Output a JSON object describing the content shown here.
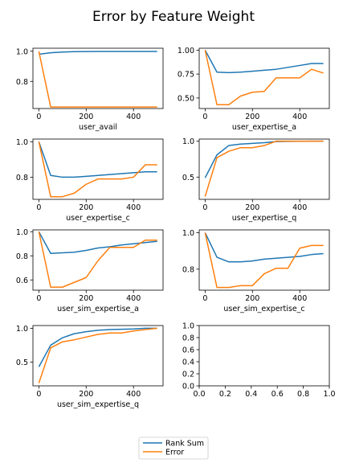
{
  "title": "Error by Feature Weight",
  "colors": {
    "rank_sum": "#1f77b4",
    "error": "#ff7f0e",
    "axis": "#000000",
    "legend_border": "#cccccc"
  },
  "legend": {
    "placement": "bottom-center",
    "entries": [
      "Rank Sum",
      "Error"
    ]
  },
  "chart_data": [
    {
      "type": "line",
      "xlabel": "user_avail",
      "xlim": [
        -25,
        525
      ],
      "ylim": [
        0.62,
        1.02
      ],
      "xticks": [
        0,
        200,
        400
      ],
      "xtick_labels": [
        "0",
        "200",
        "400"
      ],
      "yticks": [
        0.8,
        1.0
      ],
      "ytick_labels": [
        "0.8",
        "1.0"
      ],
      "x": [
        0,
        50,
        100,
        150,
        200,
        250,
        300,
        350,
        400,
        450,
        500
      ],
      "series": [
        {
          "name": "Rank Sum",
          "values": [
            0.98,
            0.99,
            0.995,
            0.997,
            0.998,
            0.999,
            0.999,
            0.999,
            0.999,
            0.999,
            0.999
          ]
        },
        {
          "name": "Error",
          "values": [
            1.0,
            0.63,
            0.63,
            0.63,
            0.63,
            0.63,
            0.63,
            0.63,
            0.63,
            0.63,
            0.63
          ]
        }
      ]
    },
    {
      "type": "line",
      "xlabel": "user_expertise_a",
      "xlim": [
        -25,
        525
      ],
      "ylim": [
        0.39,
        1.02
      ],
      "xticks": [
        0,
        200,
        400
      ],
      "xtick_labels": [
        "0",
        "200",
        "400"
      ],
      "yticks": [
        0.5,
        0.75,
        1.0
      ],
      "ytick_labels": [
        "0.50",
        "0.75",
        "1.00"
      ],
      "x": [
        0,
        50,
        100,
        150,
        200,
        250,
        300,
        350,
        400,
        450,
        500
      ],
      "series": [
        {
          "name": "Rank Sum",
          "values": [
            1.0,
            0.77,
            0.765,
            0.77,
            0.78,
            0.79,
            0.8,
            0.82,
            0.84,
            0.86,
            0.86
          ]
        },
        {
          "name": "Error",
          "values": [
            1.0,
            0.43,
            0.43,
            0.52,
            0.56,
            0.57,
            0.71,
            0.71,
            0.71,
            0.8,
            0.76
          ]
        }
      ]
    },
    {
      "type": "line",
      "xlabel": "user_expertise_c",
      "xlim": [
        -25,
        525
      ],
      "ylim": [
        0.675,
        1.015
      ],
      "xticks": [
        0,
        200,
        400
      ],
      "xtick_labels": [
        "0",
        "200",
        "400"
      ],
      "yticks": [
        0.8,
        1.0
      ],
      "ytick_labels": [
        "0.8",
        "1.0"
      ],
      "x": [
        0,
        50,
        100,
        150,
        200,
        250,
        300,
        350,
        400,
        450,
        500
      ],
      "series": [
        {
          "name": "Rank Sum",
          "values": [
            1.0,
            0.81,
            0.8,
            0.8,
            0.805,
            0.81,
            0.815,
            0.82,
            0.825,
            0.83,
            0.83
          ]
        },
        {
          "name": "Error",
          "values": [
            1.0,
            0.69,
            0.69,
            0.71,
            0.76,
            0.79,
            0.79,
            0.79,
            0.8,
            0.87,
            0.87
          ]
        }
      ]
    },
    {
      "type": "line",
      "xlabel": "user_expertise_q",
      "xlim": [
        -25,
        525
      ],
      "ylim": [
        0.19,
        1.03
      ],
      "xticks": [
        0,
        200,
        400
      ],
      "xtick_labels": [
        "0",
        "200",
        "400"
      ],
      "yticks": [
        0.5,
        1.0
      ],
      "ytick_labels": [
        "0.5",
        "1.0"
      ],
      "x": [
        0,
        50,
        100,
        150,
        200,
        250,
        300,
        350,
        400,
        450,
        500
      ],
      "series": [
        {
          "name": "Rank Sum",
          "values": [
            0.49,
            0.81,
            0.94,
            0.96,
            0.97,
            0.98,
            0.995,
            0.998,
            0.999,
            1.0,
            1.0
          ]
        },
        {
          "name": "Error",
          "values": [
            0.23,
            0.77,
            0.86,
            0.91,
            0.91,
            0.94,
            1.0,
            1.0,
            1.0,
            1.0,
            1.0
          ]
        }
      ]
    },
    {
      "type": "line",
      "xlabel": "user_sim_expertise_a",
      "xlim": [
        -25,
        525
      ],
      "ylim": [
        0.515,
        1.015
      ],
      "xticks": [
        0,
        200,
        400
      ],
      "xtick_labels": [
        "0",
        "200",
        "400"
      ],
      "yticks": [
        0.6,
        0.8,
        1.0
      ],
      "ytick_labels": [
        "0.6",
        "0.8",
        "1.0"
      ],
      "x": [
        0,
        50,
        100,
        150,
        200,
        250,
        300,
        350,
        400,
        450,
        500
      ],
      "series": [
        {
          "name": "Rank Sum",
          "values": [
            1.0,
            0.82,
            0.825,
            0.83,
            0.845,
            0.865,
            0.875,
            0.89,
            0.9,
            0.91,
            0.92
          ]
        },
        {
          "name": "Error",
          "values": [
            1.0,
            0.54,
            0.54,
            0.58,
            0.62,
            0.76,
            0.87,
            0.87,
            0.87,
            0.93,
            0.93
          ]
        }
      ]
    },
    {
      "type": "line",
      "xlabel": "user_sim_expertise_c",
      "xlim": [
        -25,
        525
      ],
      "ylim": [
        0.685,
        1.015
      ],
      "xticks": [
        0,
        200,
        400
      ],
      "xtick_labels": [
        "0",
        "200",
        "400"
      ],
      "yticks": [
        0.8,
        1.0
      ],
      "ytick_labels": [
        "0.8",
        "1.0"
      ],
      "x": [
        0,
        50,
        100,
        150,
        200,
        250,
        300,
        350,
        400,
        450,
        500
      ],
      "series": [
        {
          "name": "Rank Sum",
          "values": [
            1.0,
            0.865,
            0.84,
            0.84,
            0.845,
            0.855,
            0.86,
            0.865,
            0.87,
            0.88,
            0.885
          ]
        },
        {
          "name": "Error",
          "values": [
            1.0,
            0.7,
            0.7,
            0.71,
            0.71,
            0.775,
            0.805,
            0.805,
            0.915,
            0.93,
            0.93
          ]
        }
      ]
    },
    {
      "type": "line",
      "xlabel": "user_sim_expertise_q",
      "xlim": [
        -25,
        525
      ],
      "ylim": [
        0.15,
        1.04
      ],
      "xticks": [
        0,
        200,
        400
      ],
      "xtick_labels": [
        "0",
        "200",
        "400"
      ],
      "yticks": [
        0.5,
        1.0
      ],
      "ytick_labels": [
        "0.5",
        "1.0"
      ],
      "x": [
        0,
        50,
        100,
        150,
        200,
        250,
        300,
        350,
        400,
        450,
        500
      ],
      "series": [
        {
          "name": "Rank Sum",
          "values": [
            0.43,
            0.75,
            0.86,
            0.92,
            0.95,
            0.97,
            0.98,
            0.985,
            0.99,
            1.0,
            1.0
          ]
        },
        {
          "name": "Error",
          "values": [
            0.19,
            0.71,
            0.8,
            0.83,
            0.87,
            0.91,
            0.93,
            0.93,
            0.96,
            0.98,
            1.0
          ]
        }
      ]
    },
    {
      "type": "line",
      "xlabel": "",
      "xlim": [
        0,
        1
      ],
      "ylim": [
        0,
        1
      ],
      "xticks": [
        0,
        0.2,
        0.4,
        0.6,
        0.8,
        1.0
      ],
      "xtick_labels": [
        "0.0",
        "0.2",
        "0.4",
        "0.6",
        "0.8",
        "1.0"
      ],
      "yticks": [
        0,
        0.2,
        0.4,
        0.6,
        0.8,
        1.0
      ],
      "ytick_labels": [
        "0.0",
        "0.2",
        "0.4",
        "0.6",
        "0.8",
        "1.0"
      ],
      "x": [],
      "series": []
    }
  ]
}
